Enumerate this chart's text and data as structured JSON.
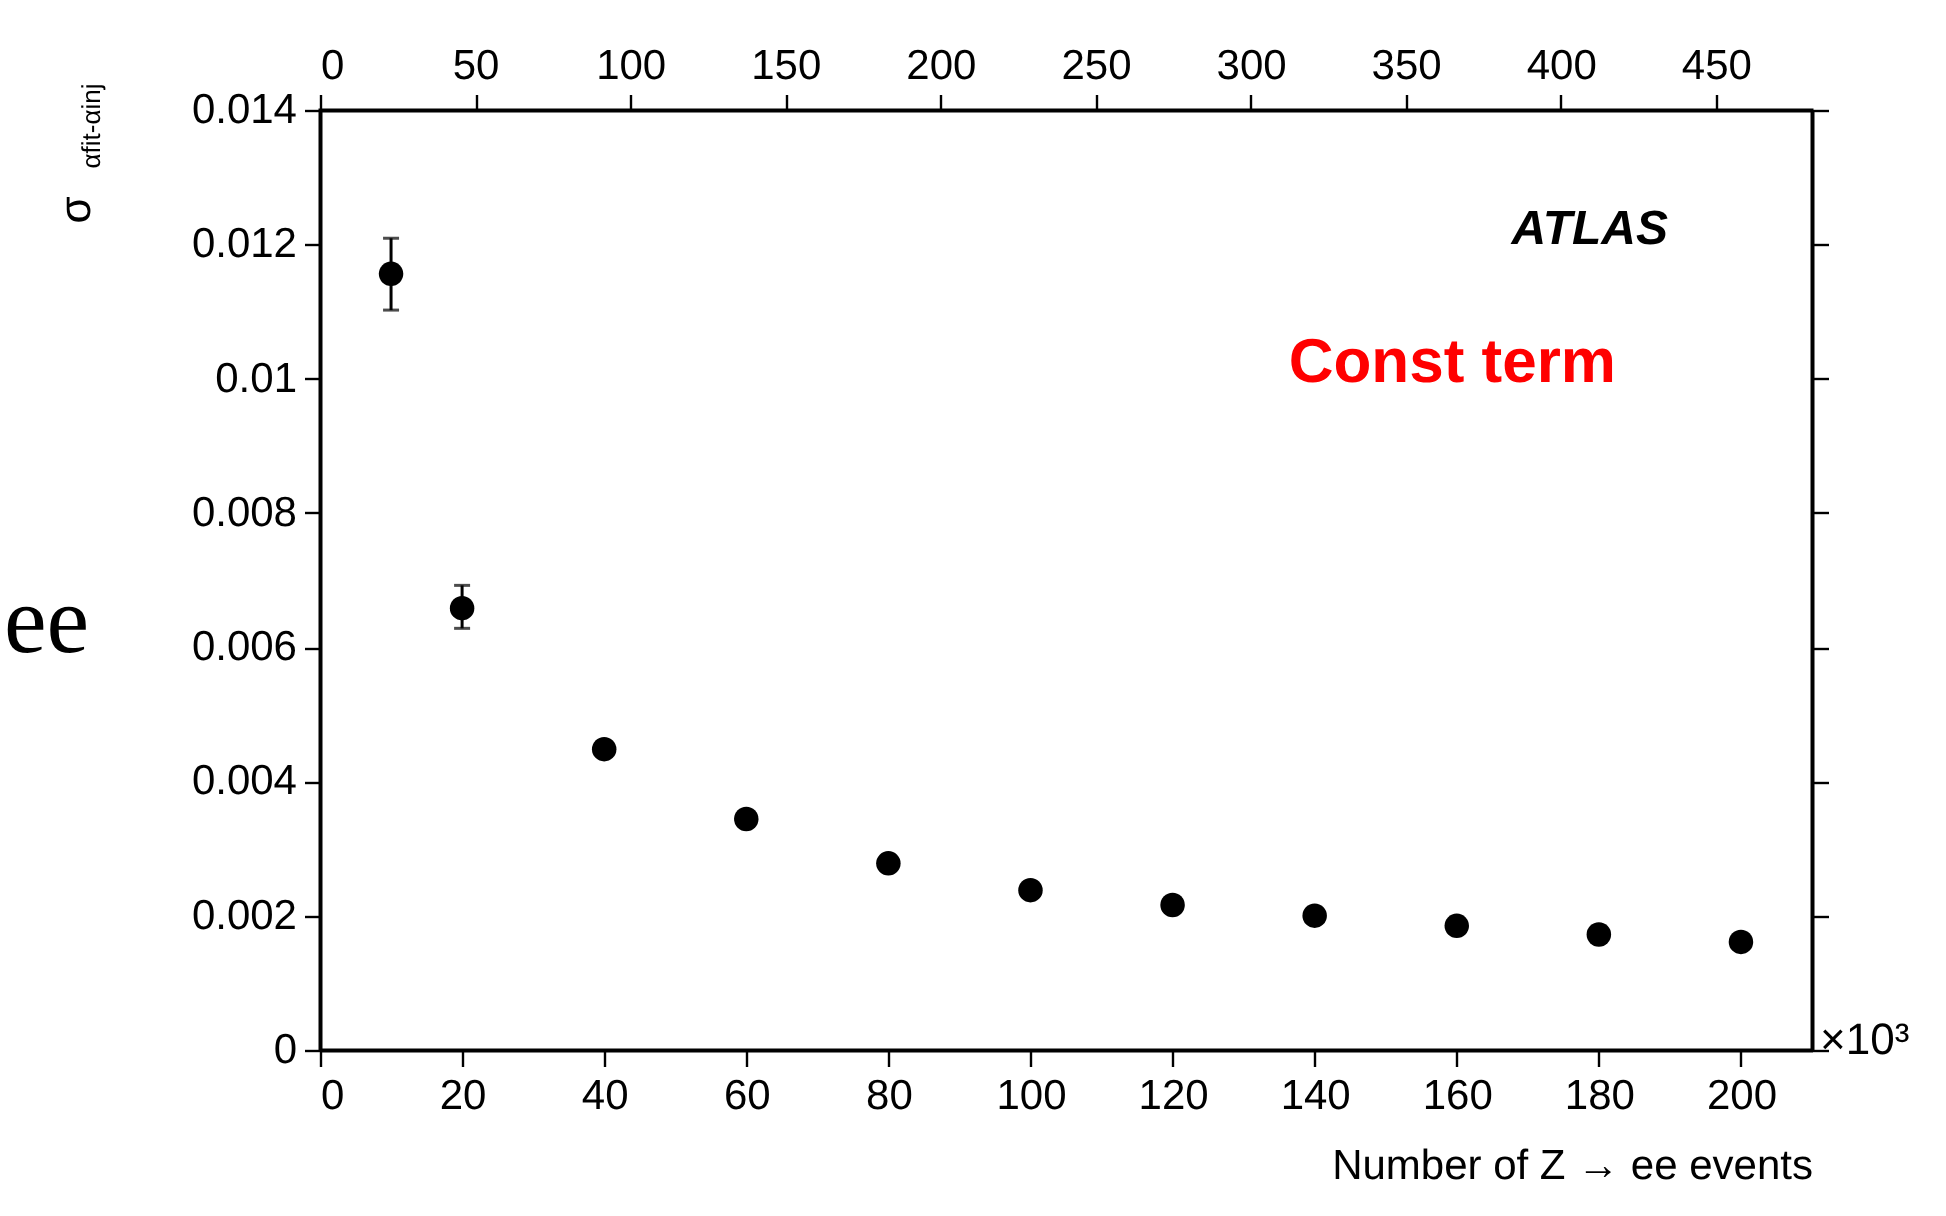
{
  "chart_data": {
    "type": "scatter",
    "xlabel": "Number of Z → ee events",
    "ylabel": "σ$_{αfit-αinj}$",
    "x": [
      10,
      20,
      40,
      60,
      80,
      100,
      120,
      140,
      160,
      180,
      200
    ],
    "series": [
      {
        "color": "#000000",
        "values": [
          0.01156,
          0.00658,
          0.00448,
          0.00344,
          0.00278,
          0.00238,
          0.00216,
          0.002,
          0.00185,
          0.00172,
          0.00161
        ],
        "errors": [
          [
            0.01102,
            0.01209
          ],
          [
            0.00628,
            0.00692
          ],
          null,
          null,
          null,
          null,
          null,
          null,
          null,
          null,
          null
        ]
      }
    ],
    "xlim": [
      0,
      210
    ],
    "xticks": [
      0,
      20,
      40,
      60,
      80,
      100,
      120,
      140,
      160,
      180,
      200
    ],
    "x2lim": [
      0,
      481
    ],
    "x2ticks": [
      0,
      50,
      100,
      150,
      200,
      250,
      300,
      350,
      400,
      450
    ],
    "ylim": [
      0,
      0.014
    ],
    "yticks": [
      0,
      0.002,
      0.004,
      0.006,
      0.008,
      0.01,
      0.012,
      0.014
    ],
    "annotations": [
      "ATLAS",
      "Const term",
      "×10³",
      "ee"
    ],
    "marker": "circle",
    "grid": false,
    "legend": false
  }
}
